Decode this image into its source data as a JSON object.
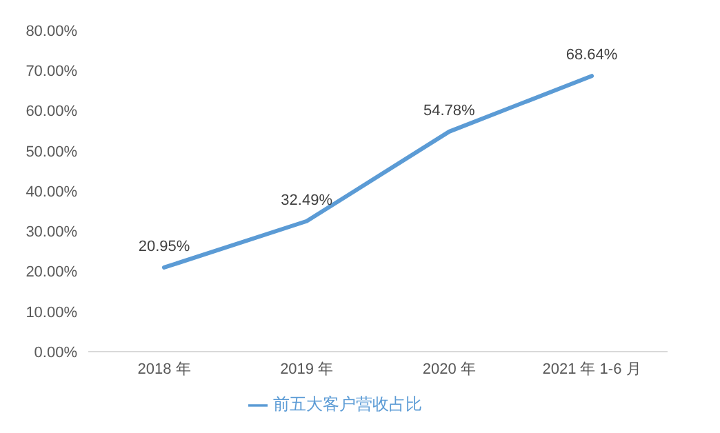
{
  "chart_data": {
    "type": "line",
    "categories": [
      "2018 年",
      "2019 年",
      "2020 年",
      "2021 年 1-6 月"
    ],
    "series": [
      {
        "name": "前五大客户营收占比",
        "color": "#5b9bd5",
        "values": [
          20.95,
          32.49,
          54.78,
          68.64
        ],
        "value_labels": [
          "20.95%",
          "32.49%",
          "54.78%",
          "68.64%"
        ]
      }
    ],
    "ylim": [
      0,
      80
    ],
    "yticks": [
      {
        "value": 0,
        "label": "0.00%"
      },
      {
        "value": 10,
        "label": "10.00%"
      },
      {
        "value": 20,
        "label": "20.00%"
      },
      {
        "value": 30,
        "label": "30.00%"
      },
      {
        "value": 40,
        "label": "40.00%"
      },
      {
        "value": 50,
        "label": "50.00%"
      },
      {
        "value": 60,
        "label": "60.00%"
      },
      {
        "value": 70,
        "label": "70.00%"
      },
      {
        "value": 80,
        "label": "80.00%"
      }
    ],
    "grid": false,
    "legend": "bottom",
    "marker": "none",
    "line_style": "solid"
  }
}
